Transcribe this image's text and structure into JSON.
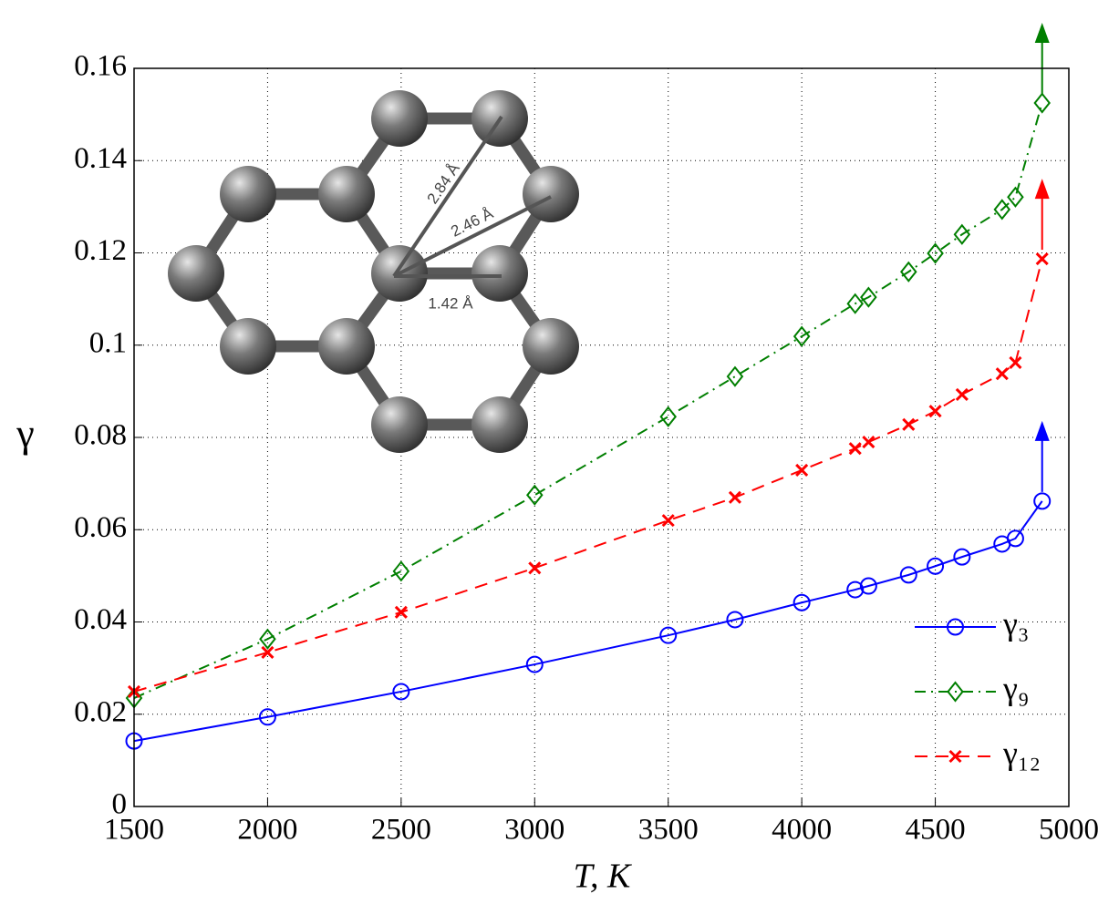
{
  "chart_data": {
    "type": "line",
    "x_label": "T,  K",
    "y_label": "γ",
    "x": [
      1500,
      2000,
      2500,
      3000,
      3500,
      3750,
      4000,
      4200,
      4250,
      4400,
      4500,
      4600,
      4750,
      4800,
      4900
    ],
    "series": [
      {
        "name": "γ₃",
        "color": "#0000ff",
        "marker": "circle",
        "dash": "solid",
        "values": [
          0.0142,
          0.0194,
          0.0249,
          0.0308,
          0.0371,
          0.0405,
          0.0442,
          0.047,
          0.0478,
          0.0502,
          0.0521,
          0.0541,
          0.0569,
          0.0581,
          0.0662
        ]
      },
      {
        "name": "γ₉",
        "color": "#007f00",
        "marker": "diamond",
        "dash": "dashdot",
        "values": [
          0.0235,
          0.0363,
          0.051,
          0.0675,
          0.0845,
          0.0932,
          0.1019,
          0.109,
          0.1104,
          0.1159,
          0.1199,
          0.124,
          0.1294,
          0.1321,
          0.1525
        ]
      },
      {
        "name": "γ₁₂",
        "color": "#ff0000",
        "marker": "x",
        "dash": "dashed",
        "values": [
          0.0249,
          0.0334,
          0.0421,
          0.0517,
          0.062,
          0.067,
          0.0729,
          0.0776,
          0.079,
          0.0828,
          0.0857,
          0.0893,
          0.0938,
          0.0962,
          0.1187
        ]
      }
    ],
    "xlim": [
      1500,
      5000
    ],
    "xticks": [
      1500,
      2000,
      2500,
      3000,
      3500,
      4000,
      4500,
      5000
    ],
    "ylim": [
      0,
      0.16
    ],
    "yticks": [
      0,
      0.02,
      0.04,
      0.06,
      0.08,
      0.1,
      0.12,
      0.14,
      0.16
    ],
    "grid": true,
    "legend": "lower right",
    "inset": {
      "labels": [
        "2.84 Å",
        "2.46 Å",
        "1.42 Å"
      ]
    }
  }
}
